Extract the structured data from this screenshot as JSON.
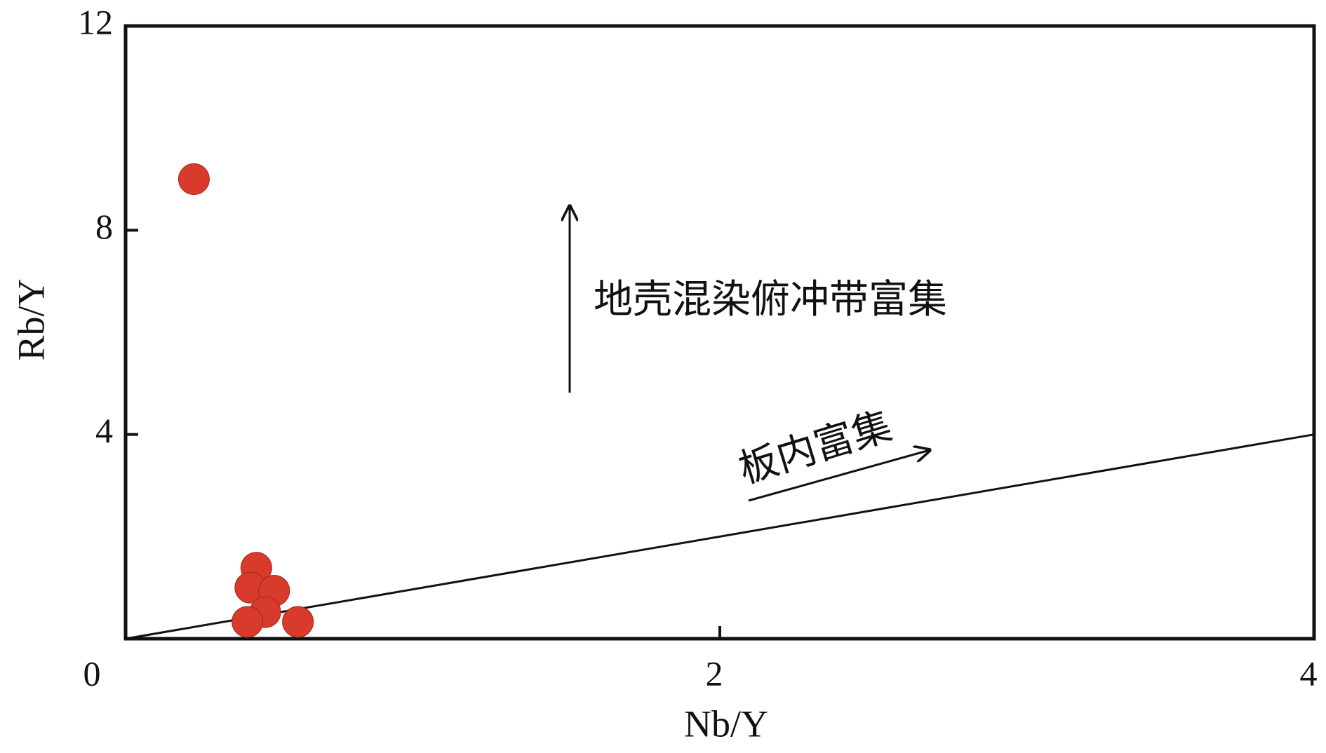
{
  "chart_data": {
    "type": "scatter",
    "x_label": "Nb/Y",
    "y_label": "Rb/Y",
    "xlim": [
      0,
      4
    ],
    "ylim": [
      0,
      12
    ],
    "xticks": [
      0,
      2,
      4
    ],
    "yticks": [
      4,
      8,
      12
    ],
    "color": "#d83a2c",
    "x": [
      0.23,
      0.44,
      0.42,
      0.5,
      0.47,
      0.41,
      0.58
    ],
    "y": [
      9.0,
      1.39,
      1.0,
      0.94,
      0.52,
      0.33,
      0.33
    ],
    "reference_line": {
      "x": [
        0,
        4
      ],
      "y": [
        0,
        4
      ]
    },
    "annotations": [
      "地壳混染俯冲带富集",
      "板内富集"
    ]
  }
}
